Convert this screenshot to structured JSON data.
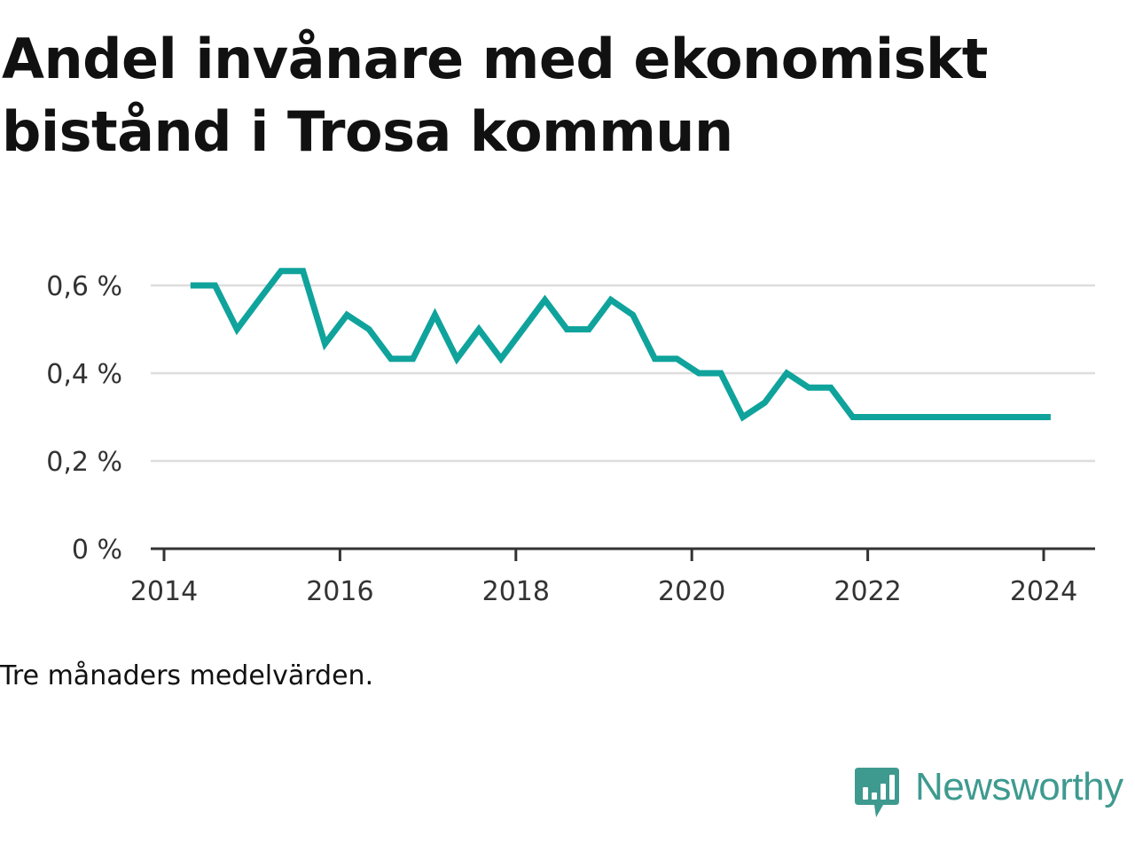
{
  "title": "Andel invånare med ekonomiskt bistånd i Trosa kommun",
  "note": "Tre månaders medelvärden.",
  "brand": {
    "name": "Newsworthy",
    "color": "#3e9a8f"
  },
  "chart_data": {
    "type": "line",
    "title": "Andel invånare med ekonomiskt bistånd i Trosa kommun",
    "xlabel": "",
    "ylabel": "",
    "xlim": [
      2013.8,
      2024.3
    ],
    "ylim": [
      0,
      0.7
    ],
    "grid": true,
    "line_color": "#0fa39c",
    "x_ticks": [
      2014,
      2016,
      2018,
      2020,
      2022,
      2024
    ],
    "x_tick_labels": [
      "2014",
      "2016",
      "2018",
      "2020",
      "2022",
      "2024"
    ],
    "y_ticks": [
      0,
      0.2,
      0.4,
      0.6
    ],
    "y_tick_labels": [
      "0 %",
      "0,2 %",
      "0,4 %",
      "0,6 %"
    ],
    "series": [
      {
        "x": [
          2014.3,
          2014.58,
          2014.83,
          2015.08,
          2015.33,
          2015.58,
          2015.83,
          2016.08,
          2016.33,
          2016.58,
          2016.83,
          2017.08,
          2017.33,
          2017.58,
          2017.83,
          2018.08,
          2018.33,
          2018.58,
          2018.83,
          2019.08,
          2019.33,
          2019.58,
          2019.83,
          2020.08,
          2020.33,
          2020.58,
          2020.83,
          2021.08,
          2021.33,
          2021.58,
          2021.83,
          2022.08,
          2022.33,
          2022.58,
          2022.83,
          2023.08,
          2023.33,
          2023.58,
          2023.83,
          2024.08
        ],
        "y": [
          0.6,
          0.6,
          0.5,
          0.567,
          0.633,
          0.633,
          0.467,
          0.533,
          0.5,
          0.433,
          0.433,
          0.533,
          0.433,
          0.5,
          0.433,
          0.5,
          0.567,
          0.5,
          0.5,
          0.567,
          0.533,
          0.433,
          0.433,
          0.4,
          0.4,
          0.3,
          0.333,
          0.4,
          0.367,
          0.367,
          0.3,
          0.3,
          0.3,
          0.3,
          0.3,
          0.3,
          0.3,
          0.3,
          0.3,
          0.3
        ]
      }
    ]
  }
}
